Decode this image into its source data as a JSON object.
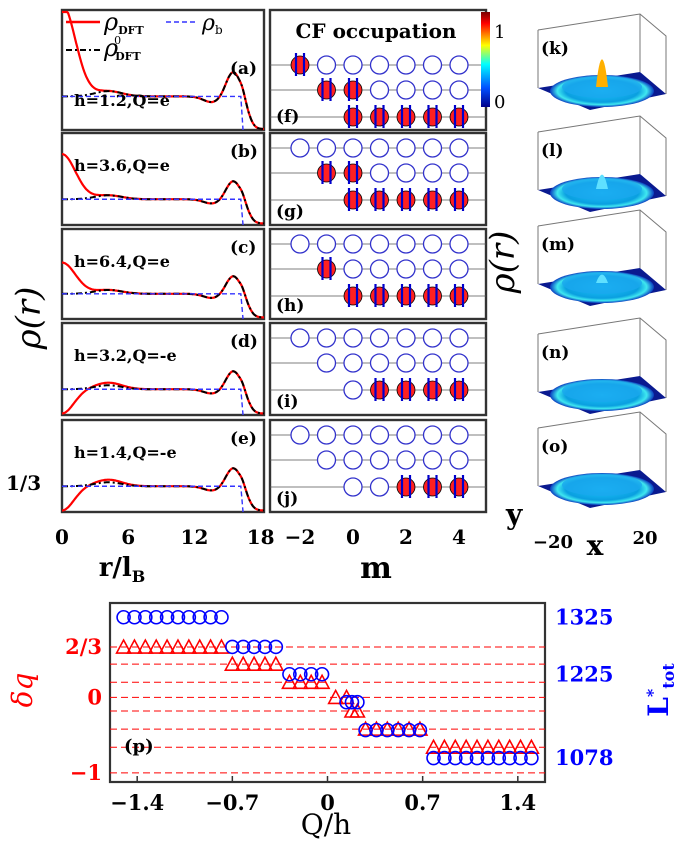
{
  "colors": {
    "dft": "#ff0000",
    "dft0": "#000000",
    "bg": "#3333ff",
    "cf_filled": "#ff2020",
    "cf_empty": "#3333cc",
    "cf_vortex": "#0000cc",
    "dq": "#ff0000",
    "ltot": "#0000ff"
  },
  "legend": {
    "rho_dft": "ρ",
    "rho_dft_sub": "DFT",
    "rho_b": "ρ",
    "rho_b_sub": "b",
    "rho_dft0": "ρ",
    "rho_dft0_sup": "0",
    "rho_dft0_sub": "DFT"
  },
  "density_panels": [
    {
      "tag": "(a)",
      "h": "h=1.2,",
      "q": "Q=e",
      "center_peak": 2.35
    },
    {
      "tag": "(b)",
      "h": "h=3.6,",
      "q": "Q=e",
      "center_peak": 1.55
    },
    {
      "tag": "(c)",
      "h": "h=6.4,",
      "q": "Q=e",
      "center_peak": 1.1
    },
    {
      "tag": "(d)",
      "h": "h=3.2,",
      "q": "Q=-e",
      "center_peak": 0.0
    },
    {
      "tag": "(e)",
      "h": "h=1.4,",
      "q": "Q=-e",
      "center_peak": 0.0
    }
  ],
  "density_axis": {
    "xticks": [
      "0",
      "6",
      "12",
      "18"
    ],
    "xtick_values": [
      0,
      6,
      12,
      18
    ],
    "xlabel": "r/l",
    "xlabel_sub": "B",
    "ylabel": "ρ(r)",
    "ytick": "1/3"
  },
  "cf": {
    "title": "CF occupation",
    "xlabel": "m",
    "xticks": [
      "−2",
      "0",
      "2",
      "4"
    ],
    "xtick_values": [
      -2,
      0,
      2,
      4
    ],
    "colorbar_ticks": [
      "1",
      "0"
    ],
    "panels": [
      {
        "tag": "(f)",
        "levels": [
          {
            "m_start": -2,
            "filled": [
              -2
            ]
          },
          {
            "m_start": -1,
            "filled": [
              -1,
              0
            ]
          },
          {
            "m_start": 0,
            "filled": [
              0,
              1,
              2,
              3,
              4
            ]
          }
        ]
      },
      {
        "tag": "(g)",
        "levels": [
          {
            "m_start": -2,
            "filled": []
          },
          {
            "m_start": -1,
            "filled": [
              -1,
              0
            ]
          },
          {
            "m_start": 0,
            "filled": [
              0,
              1,
              2,
              3,
              4
            ]
          }
        ]
      },
      {
        "tag": "(h)",
        "levels": [
          {
            "m_start": -2,
            "filled": []
          },
          {
            "m_start": -1,
            "filled": [
              -1
            ]
          },
          {
            "m_start": 0,
            "filled": [
              0,
              1,
              2,
              3,
              4
            ]
          }
        ]
      },
      {
        "tag": "(i)",
        "levels": [
          {
            "m_start": -2,
            "filled": []
          },
          {
            "m_start": -1,
            "filled": []
          },
          {
            "m_start": 0,
            "filled": [
              1,
              2,
              3,
              4
            ]
          }
        ]
      },
      {
        "tag": "(j)",
        "levels": [
          {
            "m_start": -2,
            "filled": []
          },
          {
            "m_start": -1,
            "filled": []
          },
          {
            "m_start": 0,
            "filled": [
              2,
              3,
              4
            ]
          }
        ]
      }
    ]
  },
  "surface": {
    "tags": [
      "(k)",
      "(l)",
      "(m)",
      "(n)",
      "(o)"
    ],
    "peaks": [
      1.0,
      0.45,
      0.2,
      0.0,
      0.0
    ],
    "ylabel": "ρ(r)",
    "y_axis_label": "y",
    "x_axis_label": "x",
    "x_ticks": [
      "−20",
      "20"
    ]
  },
  "chart_data": {
    "type": "scatter",
    "tag": "(p)",
    "xlabel": "Q/h",
    "xticks": [
      "−1.4",
      "−0.7",
      "0",
      "0.7",
      "1.4"
    ],
    "xtick_values": [
      -1.4,
      -0.7,
      0,
      0.7,
      1.4
    ],
    "xlim": [
      -1.6,
      1.6
    ],
    "left_ylabel": "δq",
    "left_yticks": [
      "2/3",
      "0",
      "−1"
    ],
    "left_ytick_values": [
      0.667,
      0,
      -1
    ],
    "left_ylim": [
      -1.12,
      1.25
    ],
    "right_ylabel": "L",
    "right_ylabel_sup": "*",
    "right_ylabel_sub": "tot",
    "right_yticks": [
      "1325",
      "1225",
      "1078"
    ],
    "right_ytick_values": [
      1325,
      1225,
      1078
    ],
    "right_ylim": [
      1036,
      1350
    ],
    "series": [
      {
        "name": "δq",
        "marker": "triangle",
        "points": [
          [
            -1.5,
            0.667
          ],
          [
            -1.42,
            0.667
          ],
          [
            -1.34,
            0.667
          ],
          [
            -1.26,
            0.667
          ],
          [
            -1.18,
            0.667
          ],
          [
            -1.1,
            0.667
          ],
          [
            -1.02,
            0.667
          ],
          [
            -0.94,
            0.667
          ],
          [
            -0.86,
            0.667
          ],
          [
            -0.78,
            0.667
          ],
          [
            -0.7,
            0.44
          ],
          [
            -0.62,
            0.44
          ],
          [
            -0.54,
            0.44
          ],
          [
            -0.46,
            0.44
          ],
          [
            -0.38,
            0.44
          ],
          [
            -0.28,
            0.2
          ],
          [
            -0.2,
            0.2
          ],
          [
            -0.12,
            0.2
          ],
          [
            -0.04,
            0.2
          ],
          [
            0.06,
            0.0
          ],
          [
            0.14,
            0.0
          ],
          [
            0.18,
            -0.18
          ],
          [
            0.22,
            -0.18
          ],
          [
            0.28,
            -0.42
          ],
          [
            0.36,
            -0.42
          ],
          [
            0.44,
            -0.42
          ],
          [
            0.52,
            -0.42
          ],
          [
            0.6,
            -0.42
          ],
          [
            0.68,
            -0.42
          ],
          [
            0.78,
            -0.66
          ],
          [
            0.86,
            -0.66
          ],
          [
            0.94,
            -0.66
          ],
          [
            1.02,
            -0.66
          ],
          [
            1.1,
            -0.66
          ],
          [
            1.18,
            -0.66
          ],
          [
            1.26,
            -0.66
          ],
          [
            1.34,
            -0.66
          ],
          [
            1.42,
            -0.66
          ],
          [
            1.5,
            -0.66
          ]
        ]
      },
      {
        "name": "L*tot",
        "marker": "circle",
        "points": [
          [
            -1.5,
            1325
          ],
          [
            -1.42,
            1325
          ],
          [
            -1.34,
            1325
          ],
          [
            -1.26,
            1325
          ],
          [
            -1.18,
            1325
          ],
          [
            -1.1,
            1325
          ],
          [
            -1.02,
            1325
          ],
          [
            -0.94,
            1325
          ],
          [
            -0.86,
            1325
          ],
          [
            -0.78,
            1325
          ],
          [
            -0.7,
            1273
          ],
          [
            -0.62,
            1273
          ],
          [
            -0.54,
            1273
          ],
          [
            -0.46,
            1273
          ],
          [
            -0.38,
            1273
          ],
          [
            -0.28,
            1225
          ],
          [
            -0.2,
            1225
          ],
          [
            -0.12,
            1225
          ],
          [
            -0.04,
            1225
          ],
          [
            0.14,
            1176
          ],
          [
            0.18,
            1176
          ],
          [
            0.22,
            1176
          ],
          [
            0.28,
            1127
          ],
          [
            0.36,
            1127
          ],
          [
            0.44,
            1127
          ],
          [
            0.52,
            1127
          ],
          [
            0.6,
            1127
          ],
          [
            0.68,
            1127
          ],
          [
            0.78,
            1078
          ],
          [
            0.86,
            1078
          ],
          [
            0.94,
            1078
          ],
          [
            1.02,
            1078
          ],
          [
            1.1,
            1078
          ],
          [
            1.18,
            1078
          ],
          [
            1.26,
            1078
          ],
          [
            1.34,
            1078
          ],
          [
            1.42,
            1078
          ],
          [
            1.5,
            1078
          ]
        ]
      }
    ],
    "hlines_dq": [
      0.667,
      0.44,
      0.2,
      0.0,
      -0.18,
      -0.42,
      -0.66,
      -1
    ]
  }
}
